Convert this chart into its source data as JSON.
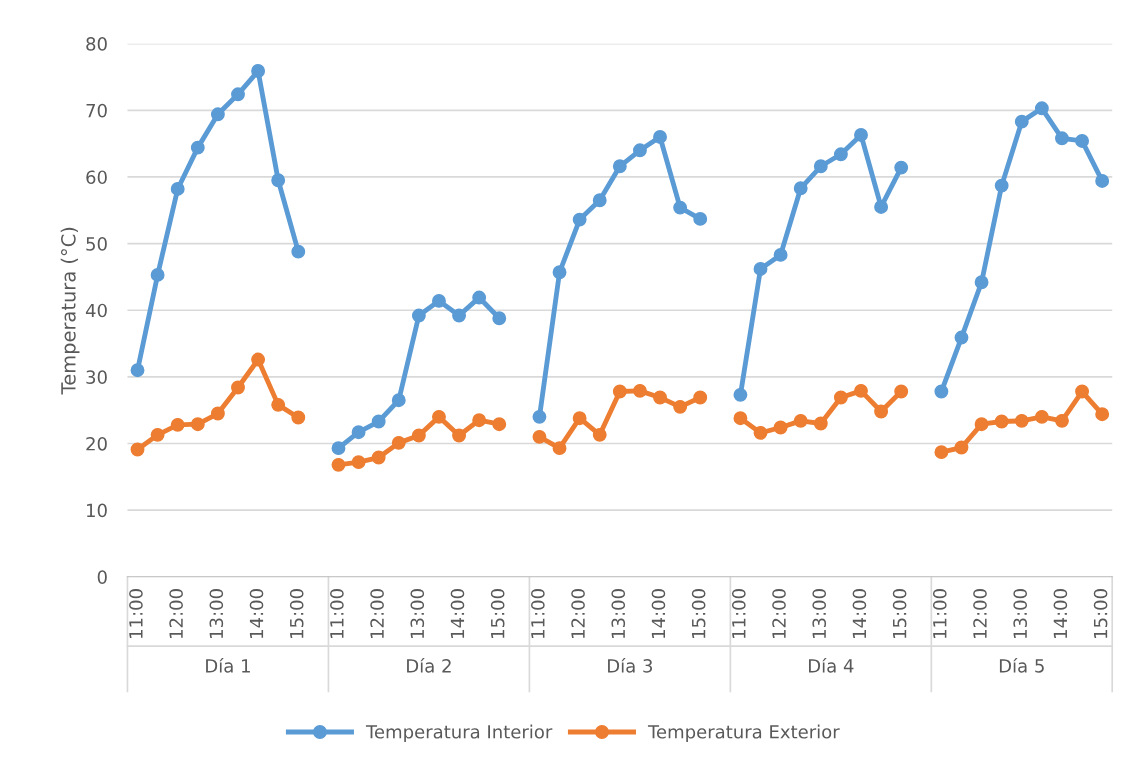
{
  "chart_data": {
    "type": "line",
    "ylabel": "Temperatura (°C)",
    "categories": [
      "11:00",
      null,
      "12:00",
      null,
      "13:00",
      null,
      "14:00",
      null,
      "15:00",
      null,
      "11:00",
      null,
      "12:00",
      null,
      "13:00",
      null,
      "14:00",
      null,
      "15:00",
      null,
      "11:00",
      null,
      "12:00",
      null,
      "13:00",
      null,
      "14:00",
      null,
      "15:00",
      null,
      "11:00",
      null,
      "12:00",
      null,
      "13:00",
      null,
      "14:00",
      null,
      "15:00",
      null,
      "11:00",
      null,
      "12:00",
      null,
      "13:00",
      null,
      "14:00",
      null,
      "15:00"
    ],
    "series": [
      {
        "name": "Temperatura Interior",
        "color": "#5b9bd5",
        "values": [
          31.0,
          45.3,
          58.2,
          64.4,
          69.4,
          72.4,
          75.9,
          59.5,
          48.8,
          null,
          19.3,
          21.7,
          23.3,
          26.5,
          39.2,
          41.4,
          39.2,
          41.9,
          38.8,
          null,
          24.0,
          45.7,
          53.6,
          56.5,
          61.6,
          64.0,
          66.0,
          55.4,
          53.7,
          null,
          27.3,
          46.2,
          48.3,
          58.3,
          61.6,
          63.4,
          66.3,
          55.5,
          61.4,
          null,
          27.8,
          35.9,
          44.2,
          58.7,
          68.3,
          70.3,
          65.8,
          65.4,
          59.4
        ]
      },
      {
        "name": "Temperatura Exterior",
        "color": "#ed7d31",
        "values": [
          19.1,
          21.3,
          22.8,
          22.9,
          24.5,
          28.4,
          32.6,
          25.8,
          23.9,
          null,
          16.8,
          17.2,
          17.9,
          20.1,
          21.2,
          24.0,
          21.2,
          23.5,
          22.9,
          null,
          21.0,
          19.3,
          23.8,
          21.3,
          27.8,
          27.9,
          26.9,
          25.5,
          26.9,
          null,
          23.8,
          21.6,
          22.4,
          23.4,
          23.0,
          26.9,
          27.9,
          24.8,
          27.8,
          null,
          18.7,
          19.4,
          22.9,
          23.3,
          23.4,
          24.0,
          23.4,
          27.8,
          24.4
        ]
      }
    ],
    "annotations": [
      "Día 1",
      "Día 2",
      "Día 3",
      "Día 4",
      "Día 5"
    ],
    "ylim": [
      0,
      80
    ],
    "yticks": [
      0,
      10,
      20,
      30,
      40,
      50,
      60,
      70,
      80
    ],
    "grid": "y",
    "legend": "bottom",
    "marker": "circle",
    "line_style": "solid"
  }
}
